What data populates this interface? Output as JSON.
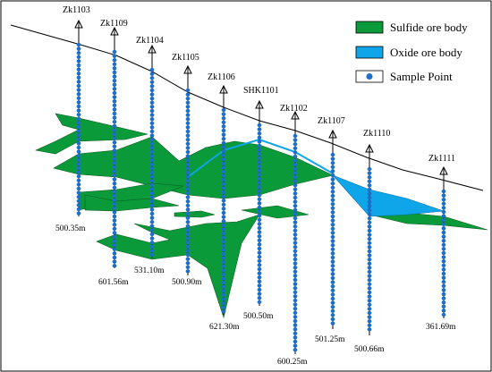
{
  "legend": {
    "sulfide_label": "Sulfide ore body",
    "oxide_label": "Oxide ore body",
    "sample_label": "Sample Point"
  },
  "colors": {
    "sulfide": "#0a9a3a",
    "oxide": "#0ea5e9",
    "sample": "#1d6fc9",
    "line": "#000000"
  },
  "drillholes": [
    {
      "id": "Zk1103",
      "depth": "500.35m"
    },
    {
      "id": "Zk1109",
      "depth": "601.56m"
    },
    {
      "id": "Zk1104",
      "depth": "531.10m"
    },
    {
      "id": "Zk1105",
      "depth": "500.90m"
    },
    {
      "id": "Zk1106",
      "depth": "621.30m"
    },
    {
      "id": "SHK1101",
      "depth": "500.50m"
    },
    {
      "id": "Zk1102",
      "depth": "600.25m"
    },
    {
      "id": "Zk1107",
      "depth": "501.25m"
    },
    {
      "id": "Zk1110",
      "depth": "500.66m"
    },
    {
      "id": "Zk1111",
      "depth": "361.69m"
    }
  ]
}
